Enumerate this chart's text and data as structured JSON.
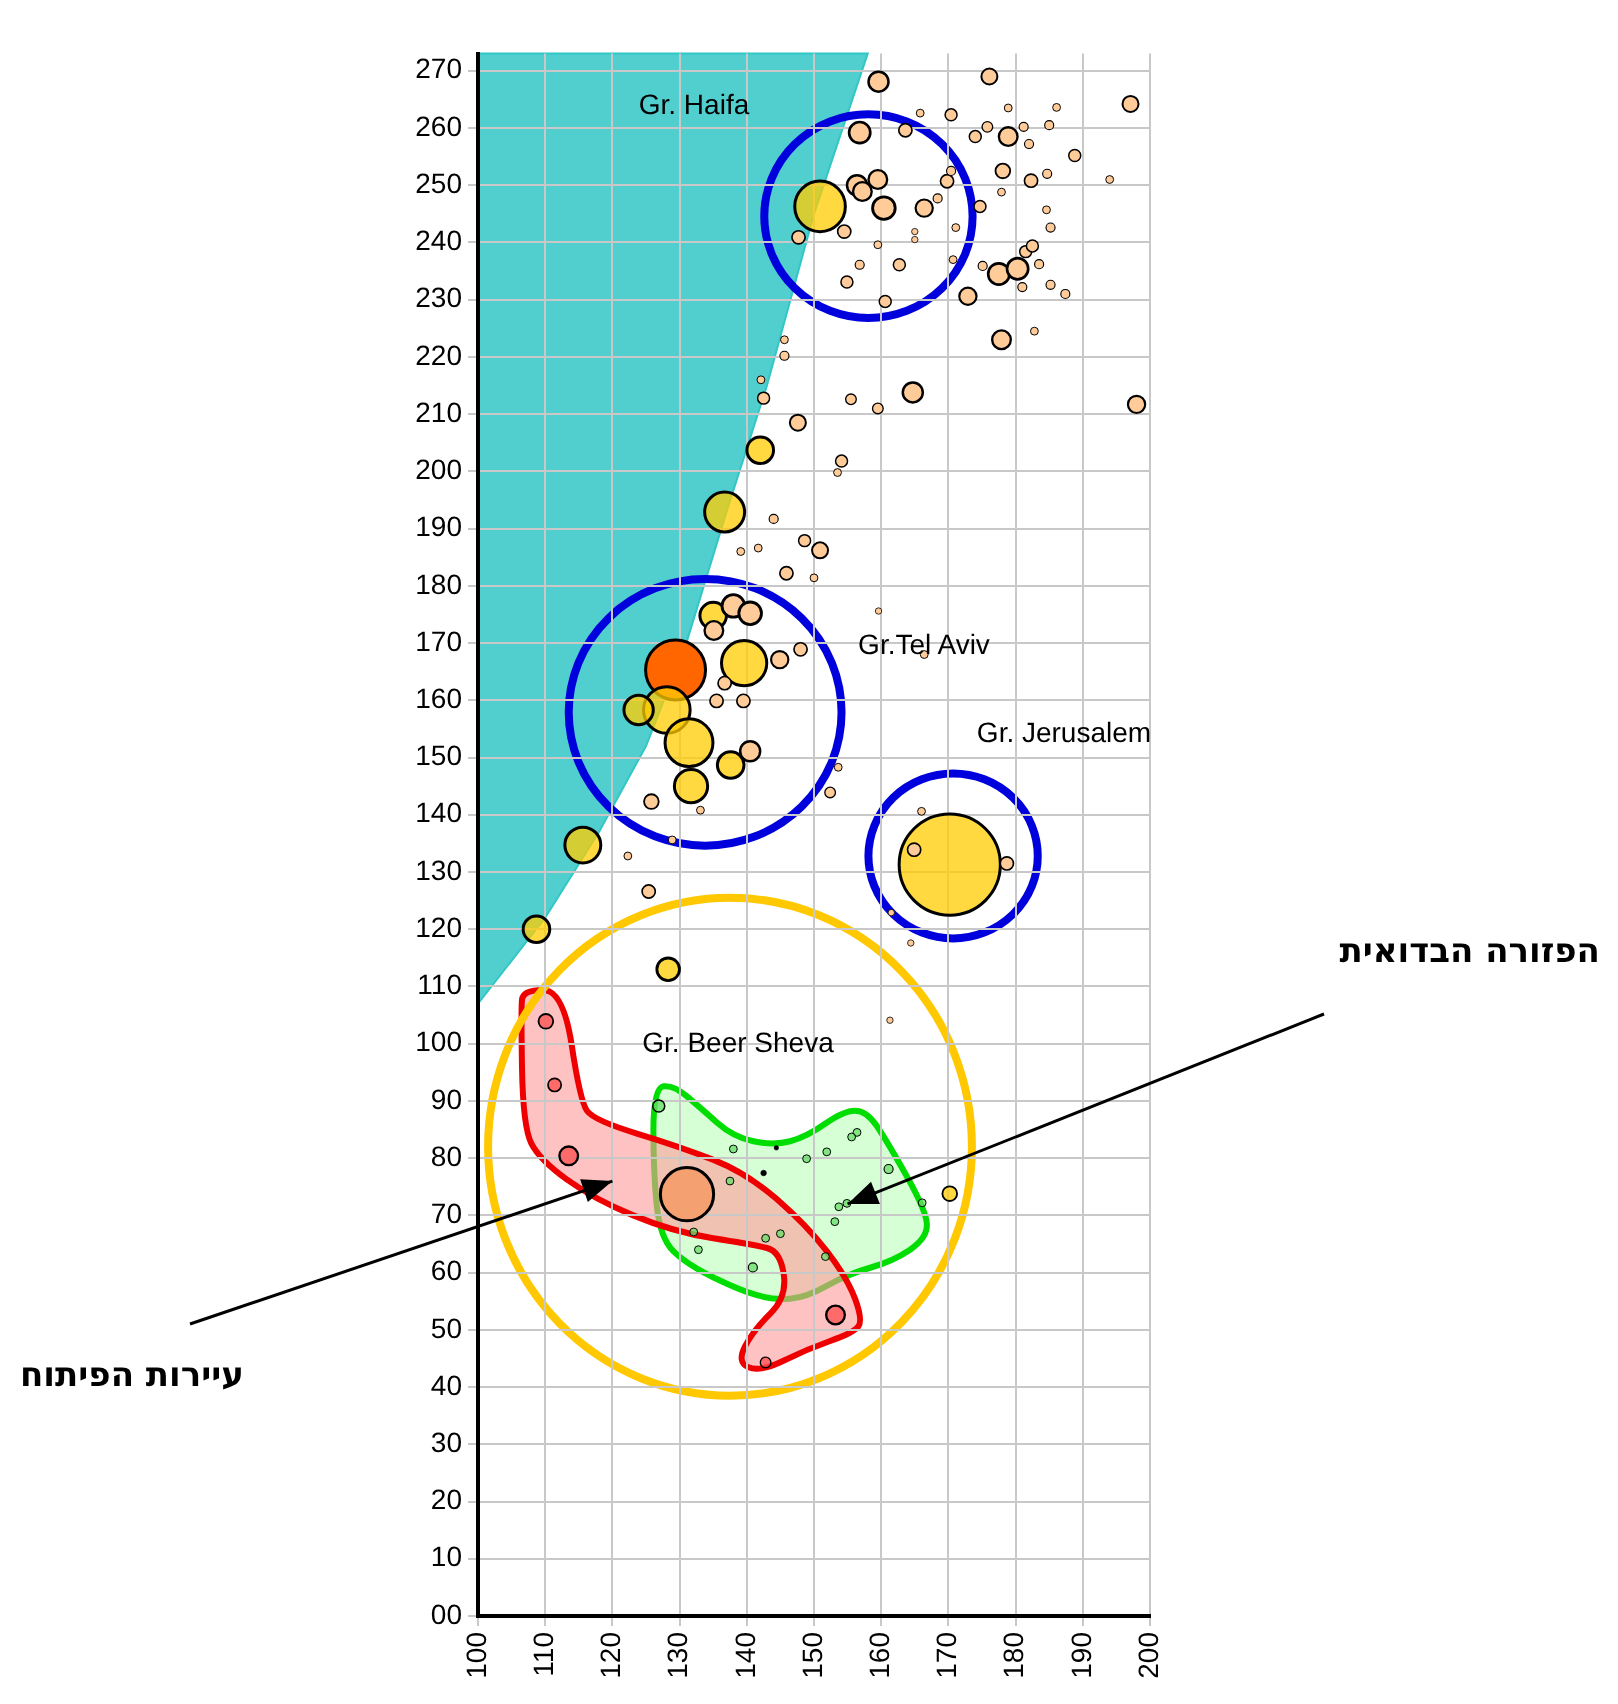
{
  "chart_data": {
    "type": "bubble",
    "xlim": [
      100,
      200
    ],
    "xticks": [
      100,
      110,
      120,
      130,
      140,
      150,
      160,
      170,
      180,
      190,
      200
    ],
    "ylim": [
      0,
      273
    ],
    "yticks": [
      {
        "value": 0,
        "label": "00"
      },
      10,
      20,
      30,
      40,
      50,
      60,
      70,
      80,
      90,
      100,
      110,
      120,
      130,
      140,
      150,
      160,
      170,
      180,
      190,
      200,
      210,
      220,
      230,
      240,
      250,
      260,
      270
    ],
    "grid": true,
    "legend": false,
    "series": [
      {
        "color": "#ffcc99",
        "x": [
          159.6,
          176.1,
          197.1,
          178.9,
          186.1,
          165.8,
          170.4,
          156.8,
          163.6,
          174,
          175.8,
          178.9,
          181.2,
          185,
          182,
          188.8,
          194,
          156.4,
          159.5,
          157.2,
          160.4,
          166.4,
          168.4,
          169.8,
          170.4,
          178.1,
          177.9,
          182.3,
          184.7,
          184.6,
          185.2,
          174.7,
          171.1,
          154.5,
          147.7,
          159.5,
          165,
          165,
          170.7,
          162.7,
          156.8,
          154.9,
          160.6,
          175.1,
          177.5,
          180.3,
          181.5,
          182.5,
          181,
          183.5,
          185.2,
          187.4,
          172.9,
          177.9,
          182.8,
          145.6,
          145.6,
          142.1,
          142.5,
          155.5,
          159.5,
          164.7,
          198,
          147.6,
          154.1,
          153.5,
          144,
          148.6,
          150.9,
          139.1,
          141.7,
          145.9,
          150,
          159.6,
          138,
          140.5,
          135.1,
          144.9,
          148,
          136.7,
          135.5,
          139.5,
          140.5,
          125.8,
          133.1,
          166.4,
          153.6,
          152.4,
          128.9,
          122.3,
          125.4,
          164.9,
          178.7,
          166,
          161.5,
          164.4,
          161.3
        ],
        "values": [
          268.1,
          269,
          264.2,
          263.5,
          263.6,
          262.6,
          262.3,
          259.2,
          259.6,
          258.5,
          260.2,
          258.5,
          260.2,
          260.5,
          257.2,
          255.2,
          251,
          250,
          251,
          248.9,
          246,
          246,
          247.7,
          250.7,
          252.5,
          252.5,
          248.8,
          250.8,
          252,
          245.7,
          242.6,
          246.3,
          242.6,
          241.9,
          240.9,
          239.6,
          241.9,
          240.5,
          237,
          236.1,
          236.1,
          233.1,
          229.7,
          235.9,
          234.5,
          235.4,
          238.4,
          239.4,
          232.2,
          236.2,
          232.6,
          231,
          230.6,
          223,
          224.5,
          223,
          220.2,
          216,
          212.8,
          212.6,
          211,
          213.8,
          211.7,
          208.5,
          201.8,
          199.8,
          191.7,
          187.9,
          186.2,
          186,
          186.6,
          182.2,
          181.4,
          175.6,
          176.5,
          175.2,
          172.2,
          167.1,
          168.9,
          163,
          159.9,
          159.9,
          151.1,
          142.3,
          140.8,
          168,
          148.3,
          143.9,
          135.6,
          132.8,
          126.6,
          133.9,
          131.5,
          140.6,
          122.9,
          117.6,
          104.1
        ],
        "sizes": [
          0.039,
          0.025,
          0.025,
          0.006,
          0.006,
          0.006,
          0.014,
          0.044,
          0.017,
          0.014,
          0.011,
          0.034,
          0.008,
          0.008,
          0.008,
          0.014,
          0.006,
          0.039,
          0.034,
          0.034,
          0.05,
          0.029,
          0.008,
          0.017,
          0.008,
          0.021,
          0.006,
          0.017,
          0.008,
          0.006,
          0.008,
          0.014,
          0.006,
          0.017,
          0.017,
          0.006,
          0.004,
          0.004,
          0.006,
          0.014,
          0.008,
          0.014,
          0.014,
          0.008,
          0.044,
          0.044,
          0.014,
          0.014,
          0.008,
          0.008,
          0.008,
          0.008,
          0.029,
          0.034,
          0.006,
          0.006,
          0.008,
          0.006,
          0.014,
          0.011,
          0.011,
          0.039,
          0.029,
          0.025,
          0.014,
          0.006,
          0.008,
          0.014,
          0.025,
          0.006,
          0.006,
          0.017,
          0.006,
          0.004,
          0.05,
          0.05,
          0.034,
          0.029,
          0.017,
          0.017,
          0.017,
          0.017,
          0.039,
          0.021,
          0.006,
          0.006,
          0.006,
          0.011,
          0.006,
          0.006,
          0.017,
          0.017,
          0.017,
          0.006,
          0.004,
          0.004,
          0.004
        ]
      },
      {
        "color": "#000000",
        "x": [
          144.4,
          142.5
        ],
        "values": [
          81.8,
          77.4
        ],
        "sizes": [
          0.002,
          0.003
        ]
      },
      {
        "color": "#ffcc00",
        "x": [
          150.9,
          142,
          136.7,
          135,
          139.6,
          128.1,
          131.4,
          137.6,
          131.7,
          123.9,
          115.6,
          170.2,
          108.7,
          128.3,
          170.2
        ],
        "values": [
          246.3,
          203.7,
          192.9,
          174.8,
          166.5,
          158.3,
          152.6,
          148.7,
          145,
          158.3,
          134.7,
          131.3,
          120,
          113,
          73.8
        ],
        "sizes": [
          0.25,
          0.069,
          0.156,
          0.069,
          0.2,
          0.212,
          0.224,
          0.069,
          0.108,
          0.084,
          0.126,
          1,
          0.069,
          0.05,
          0.021
        ]
      },
      {
        "color": "#ff6600",
        "x": [
          129.4
        ],
        "values": [
          165.3
        ],
        "sizes": [
          0.351
        ]
      },
      {
        "color": "#f4a070",
        "x": [
          131.1
        ],
        "values": [
          73.7
        ],
        "sizes": [
          0.277
        ]
      },
      {
        "color": "#ff4d4d",
        "x": [
          110.1,
          111.4,
          113.5,
          153.2,
          142.8
        ],
        "values": [
          103.9,
          92.8,
          80.4,
          52.6,
          44.3
        ],
        "sizes": [
          0.021,
          0.017,
          0.034,
          0.034,
          0.011
        ]
      },
      {
        "color": "#66dd66",
        "x": [
          126.9,
          138,
          148.9,
          151.9,
          156.4,
          155.6,
          161.1,
          166.1,
          154.9,
          153.7,
          153.1,
          142.8,
          145,
          132.8,
          140.9,
          151.7,
          132.1,
          137.5
        ],
        "values": [
          89.1,
          81.6,
          79.9,
          81.1,
          84.5,
          83.7,
          78.1,
          72.2,
          72.1,
          71.5,
          68.9,
          66,
          66.8,
          64,
          60.9,
          62.8,
          67.1,
          76
        ],
        "sizes": [
          0.014,
          0.006,
          0.006,
          0.006,
          0.006,
          0.006,
          0.008,
          0.006,
          0.006,
          0.006,
          0.006,
          0.006,
          0.006,
          0.006,
          0.008,
          0.006,
          0.006,
          0.006
        ]
      }
    ],
    "annotations": [
      "Gr. Haifa",
      "Gr.Tel Aviv",
      "Gr. Jerusalem",
      "Gr. Beer Sheva",
      "הפזורה הבדואית",
      "עיירות הפיתוח"
    ]
  }
}
